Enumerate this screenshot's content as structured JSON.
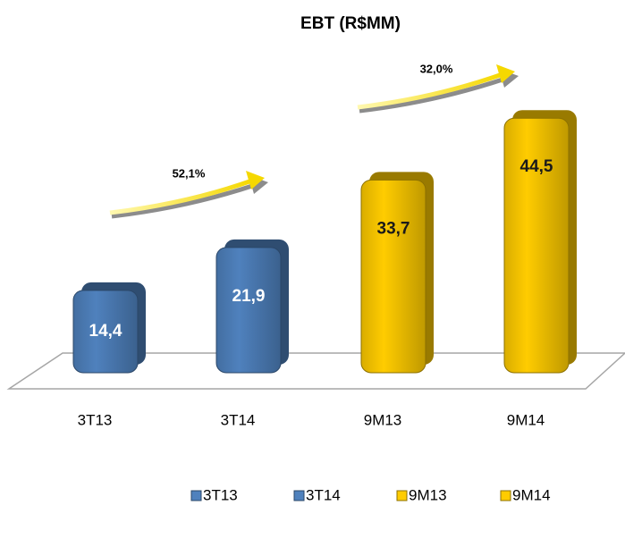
{
  "chart_data": {
    "type": "bar3d",
    "title": "EBT  (R$MM)",
    "categories": [
      "3T13",
      "3T14",
      "9M13",
      "9M14"
    ],
    "values": [
      14.4,
      21.9,
      33.7,
      44.5
    ],
    "value_labels": [
      "14,4",
      "21,9",
      "33,7",
      "44,5"
    ],
    "colors": [
      "#4f81bd",
      "#4f81bd",
      "#ffcc00",
      "#ffcc00"
    ],
    "annotations": [
      "52,1%",
      "32,0%"
    ]
  }
}
